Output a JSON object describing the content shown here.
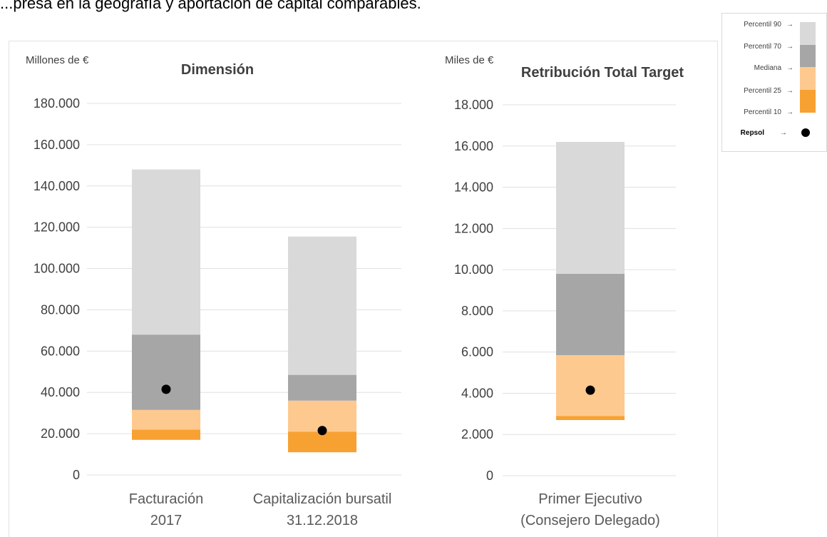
{
  "header_text": "...presa en la geografía y aportación de capital comparables.",
  "colors": {
    "p90": "#d9d9d9",
    "p70": "#a6a6a6",
    "mediana": "#fec98f",
    "p25": "#f8a133",
    "repsol": "#000000",
    "grid": "#e0e0e0"
  },
  "legend": {
    "items": [
      {
        "label": "Percentil 90",
        "arrow": "→",
        "color": "#d9d9d9"
      },
      {
        "label": "Percentil 70",
        "arrow": "→",
        "color": "#a6a6a6"
      },
      {
        "label": "Mediana",
        "arrow": "→",
        "color": "#fec98f"
      },
      {
        "label": "Percentil 25",
        "arrow": "→",
        "color": "#f8a133"
      },
      {
        "label": "Percentil 10",
        "arrow": "→",
        "color": ""
      }
    ],
    "marker_label": "Repsol",
    "marker_arrow": "→"
  },
  "chart_data": [
    {
      "type": "bar",
      "title": "Dimensión",
      "unit_label": "Millones de €",
      "ylim": [
        0,
        180000
      ],
      "yticks": [
        0,
        20000,
        40000,
        60000,
        80000,
        100000,
        120000,
        140000,
        160000,
        180000
      ],
      "ytick_labels": [
        "0",
        "20.000",
        "40.000",
        "60.000",
        "80.000",
        "100.000",
        "120.000",
        "140.000",
        "160.000",
        "180.000"
      ],
      "grid": true,
      "categories": [
        {
          "line1": "Facturación",
          "line2": "2017"
        },
        {
          "line1": "Capitalización bursatil",
          "line2": "31.12.2018"
        }
      ],
      "boxes": [
        {
          "p10": 17000,
          "p25": 22000,
          "mediana": 31500,
          "p70": 68000,
          "p90": 148000,
          "repsol": 41500
        },
        {
          "p10": 11000,
          "p25": 21000,
          "mediana": 36000,
          "p70": 48500,
          "p90": 115500,
          "repsol": 21500
        }
      ]
    },
    {
      "type": "bar",
      "title": "Retribución Total Target",
      "unit_label": "Miles de €",
      "ylim": [
        0,
        18000
      ],
      "yticks": [
        0,
        2000,
        4000,
        6000,
        8000,
        10000,
        12000,
        14000,
        16000,
        18000
      ],
      "ytick_labels": [
        "0",
        "2.000",
        "4.000",
        "6.000",
        "8.000",
        "10.000",
        "12.000",
        "14.000",
        "16.000",
        "18.000"
      ],
      "grid": true,
      "categories": [
        {
          "line1": "Primer Ejecutivo",
          "line2": "(Consejero Delegado)"
        }
      ],
      "boxes": [
        {
          "p10": 2700,
          "p25": 2900,
          "mediana": 5850,
          "p70": 9800,
          "p90": 16200,
          "repsol": 4150
        }
      ]
    }
  ]
}
